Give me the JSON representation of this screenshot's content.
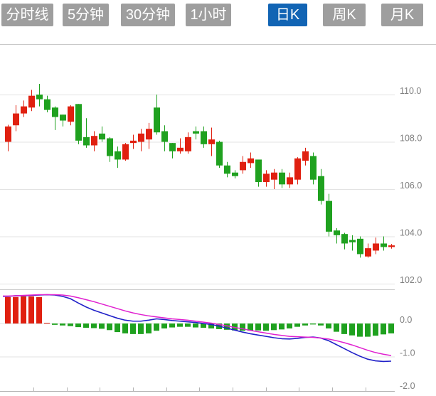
{
  "toolbar": {
    "tabs": [
      {
        "label": "分时线",
        "active": false
      },
      {
        "label": "5分钟",
        "active": false
      },
      {
        "label": "30分钟",
        "active": false
      },
      {
        "label": "1小时",
        "active": false
      },
      {
        "label": "日K",
        "active": true
      },
      {
        "label": "周K",
        "active": false
      },
      {
        "label": "月K",
        "active": false
      }
    ],
    "active_color": "#1164b4",
    "inactive_color": "#9e9e9e",
    "tab_text_color": "#ffffff"
  },
  "colors": {
    "up_red": "#e02010",
    "down_green": "#1fa11f",
    "dif_line_blue": "#2020c8",
    "dea_line_magenta": "#e020d0",
    "grid": "#e3e3e3",
    "border": "#c8c8c8",
    "axis": "#b4b4b4",
    "label": "#808080",
    "background": "#ffffff"
  },
  "chart_data": [
    {
      "type": "candlestick",
      "panel": "price",
      "title": "",
      "grid": true,
      "y_axis": {
        "side": "right",
        "tick_labels": [
          "110.0",
          "108.0",
          "106.0",
          "104.0",
          "102.0"
        ],
        "tick_values": [
          110,
          108,
          106,
          104,
          102
        ],
        "ylim": [
          101.8,
          112.1
        ]
      },
      "x_axis": {
        "tick_count": 11,
        "tick_labels": []
      },
      "candle_format": [
        "open",
        "close",
        "high",
        "low"
      ],
      "candles": [
        [
          108.0,
          108.65,
          108.72,
          107.6
        ],
        [
          108.7,
          109.2,
          109.55,
          108.45
        ],
        [
          109.2,
          109.5,
          109.75,
          109.05
        ],
        [
          109.45,
          109.95,
          110.2,
          109.3
        ],
        [
          110.0,
          109.8,
          110.45,
          109.5
        ],
        [
          109.8,
          109.35,
          109.95,
          109.25
        ],
        [
          109.45,
          109.05,
          109.5,
          108.5
        ],
        [
          109.15,
          108.9,
          109.15,
          108.65
        ],
        [
          108.85,
          109.5,
          109.55,
          108.7
        ],
        [
          109.6,
          108.05,
          109.6,
          107.9
        ],
        [
          108.2,
          107.85,
          109.0,
          107.75
        ],
        [
          107.85,
          108.25,
          108.45,
          107.6
        ],
        [
          108.35,
          108.1,
          108.65,
          108.0
        ],
        [
          108.15,
          107.4,
          108.2,
          107.15
        ],
        [
          107.6,
          107.25,
          107.8,
          106.9
        ],
        [
          107.25,
          107.9,
          107.95,
          107.2
        ],
        [
          107.95,
          108.05,
          108.3,
          107.7
        ],
        [
          108.0,
          108.35,
          108.55,
          107.6
        ],
        [
          108.1,
          108.55,
          108.8,
          107.7
        ],
        [
          109.45,
          108.4,
          110.0,
          108.3
        ],
        [
          108.45,
          108.0,
          108.7,
          107.6
        ],
        [
          107.95,
          107.6,
          107.95,
          107.3
        ],
        [
          107.6,
          107.75,
          108.15,
          107.5
        ],
        [
          107.6,
          108.2,
          108.4,
          107.5
        ],
        [
          108.45,
          108.35,
          108.65,
          108.1
        ],
        [
          108.45,
          107.9,
          108.65,
          107.75
        ],
        [
          107.9,
          108.1,
          108.6,
          107.4
        ],
        [
          108.0,
          107.0,
          108.05,
          106.9
        ],
        [
          107.0,
          106.65,
          107.15,
          106.5
        ],
        [
          106.7,
          106.55,
          106.8,
          106.45
        ],
        [
          106.8,
          107.15,
          107.4,
          106.65
        ],
        [
          107.1,
          107.3,
          107.55,
          106.9
        ],
        [
          107.25,
          106.3,
          107.25,
          106.1
        ],
        [
          106.3,
          106.65,
          106.8,
          106.1
        ],
        [
          106.4,
          106.7,
          106.85,
          106.0
        ],
        [
          106.7,
          106.2,
          106.85,
          106.05
        ],
        [
          106.2,
          106.5,
          106.7,
          106.05
        ],
        [
          106.4,
          107.3,
          107.35,
          106.2
        ],
        [
          107.2,
          107.6,
          107.75,
          107.0
        ],
        [
          107.4,
          106.4,
          107.55,
          106.2
        ],
        [
          106.55,
          105.5,
          106.85,
          105.35
        ],
        [
          105.5,
          104.2,
          105.8,
          104.0
        ],
        [
          104.25,
          104.05,
          104.35,
          103.7
        ],
        [
          104.1,
          103.7,
          104.15,
          103.45
        ],
        [
          103.85,
          103.75,
          104.05,
          103.4
        ],
        [
          103.9,
          103.25,
          104.0,
          103.1
        ],
        [
          103.15,
          103.5,
          103.7,
          103.1
        ],
        [
          103.4,
          103.7,
          103.95,
          103.25
        ],
        [
          103.7,
          103.55,
          104.0,
          103.4
        ],
        [
          103.55,
          103.62,
          103.68,
          103.48
        ]
      ]
    },
    {
      "type": "macd",
      "panel": "indicator",
      "grid": true,
      "y_axis": {
        "side": "right",
        "tick_labels": [
          "0.0",
          "-1.0",
          "-2.0"
        ],
        "tick_values": [
          0,
          -1,
          -2
        ],
        "ylim": [
          -2.1,
          1.05
        ]
      },
      "histogram": [
        0.8,
        0.8,
        0.82,
        0.82,
        0.8,
        0.02,
        -0.04,
        -0.06,
        -0.08,
        -0.11,
        -0.13,
        -0.14,
        -0.16,
        -0.2,
        -0.26,
        -0.3,
        -0.32,
        -0.32,
        -0.3,
        -0.22,
        -0.15,
        -0.12,
        -0.1,
        -0.1,
        -0.12,
        -0.13,
        -0.15,
        -0.17,
        -0.19,
        -0.21,
        -0.22,
        -0.22,
        -0.21,
        -0.22,
        -0.2,
        -0.18,
        -0.15,
        -0.1,
        -0.06,
        -0.03,
        -0.06,
        -0.15,
        -0.25,
        -0.32,
        -0.36,
        -0.4,
        -0.4,
        -0.37,
        -0.33,
        -0.3
      ],
      "series": [
        {
          "name": "DIF",
          "color": "#2020c8",
          "values": [
            0.82,
            0.84,
            0.84,
            0.85,
            0.86,
            0.87,
            0.86,
            0.82,
            0.75,
            0.62,
            0.5,
            0.4,
            0.32,
            0.24,
            0.16,
            0.1,
            0.07,
            0.07,
            0.1,
            0.14,
            0.12,
            0.09,
            0.07,
            0.05,
            0.03,
            0.0,
            -0.03,
            -0.08,
            -0.14,
            -0.2,
            -0.26,
            -0.31,
            -0.35,
            -0.39,
            -0.43,
            -0.46,
            -0.47,
            -0.45,
            -0.42,
            -0.41,
            -0.44,
            -0.52,
            -0.64,
            -0.76,
            -0.88,
            -0.99,
            -1.08,
            -1.13,
            -1.15,
            -1.14
          ]
        },
        {
          "name": "DEA",
          "color": "#e020d0",
          "values": [
            0.83,
            0.84,
            0.85,
            0.86,
            0.87,
            0.87,
            0.87,
            0.86,
            0.83,
            0.78,
            0.72,
            0.66,
            0.59,
            0.52,
            0.45,
            0.38,
            0.32,
            0.27,
            0.23,
            0.2,
            0.17,
            0.14,
            0.12,
            0.1,
            0.07,
            0.04,
            0.01,
            -0.03,
            -0.07,
            -0.12,
            -0.16,
            -0.21,
            -0.25,
            -0.29,
            -0.33,
            -0.36,
            -0.39,
            -0.4,
            -0.41,
            -0.42,
            -0.44,
            -0.47,
            -0.52,
            -0.58,
            -0.65,
            -0.73,
            -0.81,
            -0.88,
            -0.93,
            -0.97
          ]
        }
      ]
    }
  ]
}
